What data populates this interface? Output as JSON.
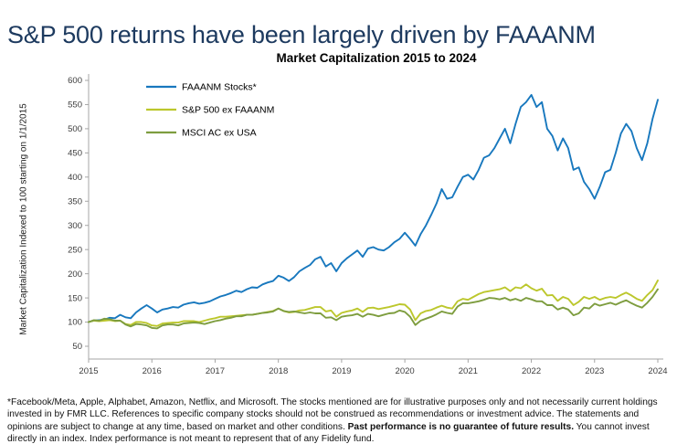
{
  "title": "S&P 500 returns have been largely driven by FAAANM",
  "colors": {
    "title_text": "#1d3a5f",
    "axis": "#a6a6a6",
    "tick_label": "#3c3c3c",
    "chart_title_text": "#000000"
  },
  "footnote": {
    "part1": "*Facebook/Meta, Apple, Alphabet, Amazon, Netflix, and Microsoft. The stocks mentioned are for illustrative purposes only and not necessarily current holdings invested in by FMR LLC. References to specific company stocks should not be construed as recommendations or investment advice. The statements and opinions are subject to change at any time, based on market and other conditions. ",
    "bold": "Past performance is no guarantee of future results.",
    "part2": " You cannot invest directly in an index. Index performance is not meant to represent that of any Fidelity fund."
  },
  "chart_data": {
    "type": "line",
    "title": "Market Capitalization 2015 to 2024",
    "xlabel": "",
    "ylabel": "Market Capitalization Indexed to 100 starting on 1/1/2015",
    "grid": false,
    "legend_position": "top-left",
    "ylim": [
      50,
      600
    ],
    "y_ticks": [
      50,
      100,
      150,
      200,
      250,
      300,
      350,
      400,
      450,
      500,
      550,
      600
    ],
    "x_ticks": [
      2015,
      2016,
      2017,
      2018,
      2019,
      2020,
      2021,
      2022,
      2023,
      2024
    ],
    "x_start_year": 2015,
    "x_end_year": 2024,
    "points_per_year": 12,
    "series": [
      {
        "name": "FAAANM Stocks*",
        "color": "#1878be",
        "values": [
          100,
          103,
          104,
          105,
          109,
          108,
          115,
          110,
          108,
          120,
          128,
          135,
          128,
          120,
          126,
          128,
          131,
          130,
          136,
          139,
          141,
          138,
          140,
          143,
          148,
          153,
          156,
          160,
          165,
          162,
          168,
          172,
          171,
          178,
          182,
          185,
          196,
          192,
          185,
          193,
          205,
          212,
          218,
          230,
          235,
          215,
          222,
          205,
          222,
          232,
          240,
          248,
          235,
          252,
          255,
          250,
          248,
          255,
          265,
          272,
          285,
          272,
          258,
          282,
          300,
          322,
          345,
          375,
          355,
          358,
          380,
          400,
          405,
          395,
          415,
          440,
          445,
          460,
          480,
          500,
          470,
          510,
          545,
          555,
          570,
          545,
          555,
          500,
          485,
          455,
          480,
          460,
          415,
          420,
          390,
          375,
          355,
          380,
          410,
          415,
          450,
          490,
          510,
          495,
          460,
          435,
          470,
          520,
          560
        ]
      },
      {
        "name": "S&P 500 ex FAAANM",
        "color": "#bcc72c",
        "values": [
          100,
          103,
          102,
          103,
          104,
          102,
          103,
          96,
          94,
          100,
          100,
          98,
          93,
          92,
          97,
          98,
          99,
          99,
          102,
          102,
          102,
          100,
          103,
          106,
          108,
          111,
          111,
          112,
          113,
          114,
          115,
          115,
          117,
          119,
          121,
          123,
          128,
          123,
          120,
          121,
          124,
          125,
          128,
          131,
          131,
          122,
          124,
          111,
          119,
          122,
          124,
          128,
          121,
          129,
          130,
          127,
          129,
          131,
          134,
          137,
          136,
          126,
          104,
          118,
          123,
          125,
          130,
          134,
          130,
          128,
          143,
          148,
          146,
          152,
          158,
          162,
          164,
          166,
          168,
          172,
          164,
          172,
          170,
          178,
          170,
          165,
          169,
          155,
          156,
          144,
          152,
          148,
          135,
          142,
          152,
          148,
          152,
          146,
          150,
          152,
          150,
          156,
          161,
          155,
          148,
          144,
          156,
          166,
          186
        ]
      },
      {
        "name": "MSCI AC ex USA",
        "color": "#7e9d3f",
        "values": [
          100,
          104,
          103,
          107,
          106,
          103,
          103,
          95,
          91,
          96,
          95,
          93,
          88,
          87,
          93,
          95,
          95,
          93,
          97,
          98,
          99,
          98,
          96,
          99,
          102,
          104,
          107,
          109,
          112,
          112,
          115,
          115,
          117,
          119,
          120,
          122,
          128,
          123,
          121,
          122,
          120,
          118,
          120,
          118,
          118,
          109,
          110,
          104,
          111,
          113,
          114,
          117,
          111,
          117,
          115,
          112,
          115,
          118,
          119,
          124,
          121,
          111,
          94,
          103,
          107,
          111,
          116,
          122,
          119,
          117,
          132,
          139,
          139,
          141,
          143,
          146,
          150,
          149,
          147,
          150,
          145,
          148,
          144,
          150,
          147,
          143,
          143,
          135,
          135,
          126,
          130,
          126,
          114,
          118,
          130,
          128,
          138,
          134,
          137,
          140,
          136,
          141,
          145,
          139,
          134,
          130,
          140,
          152,
          168
        ]
      }
    ]
  }
}
